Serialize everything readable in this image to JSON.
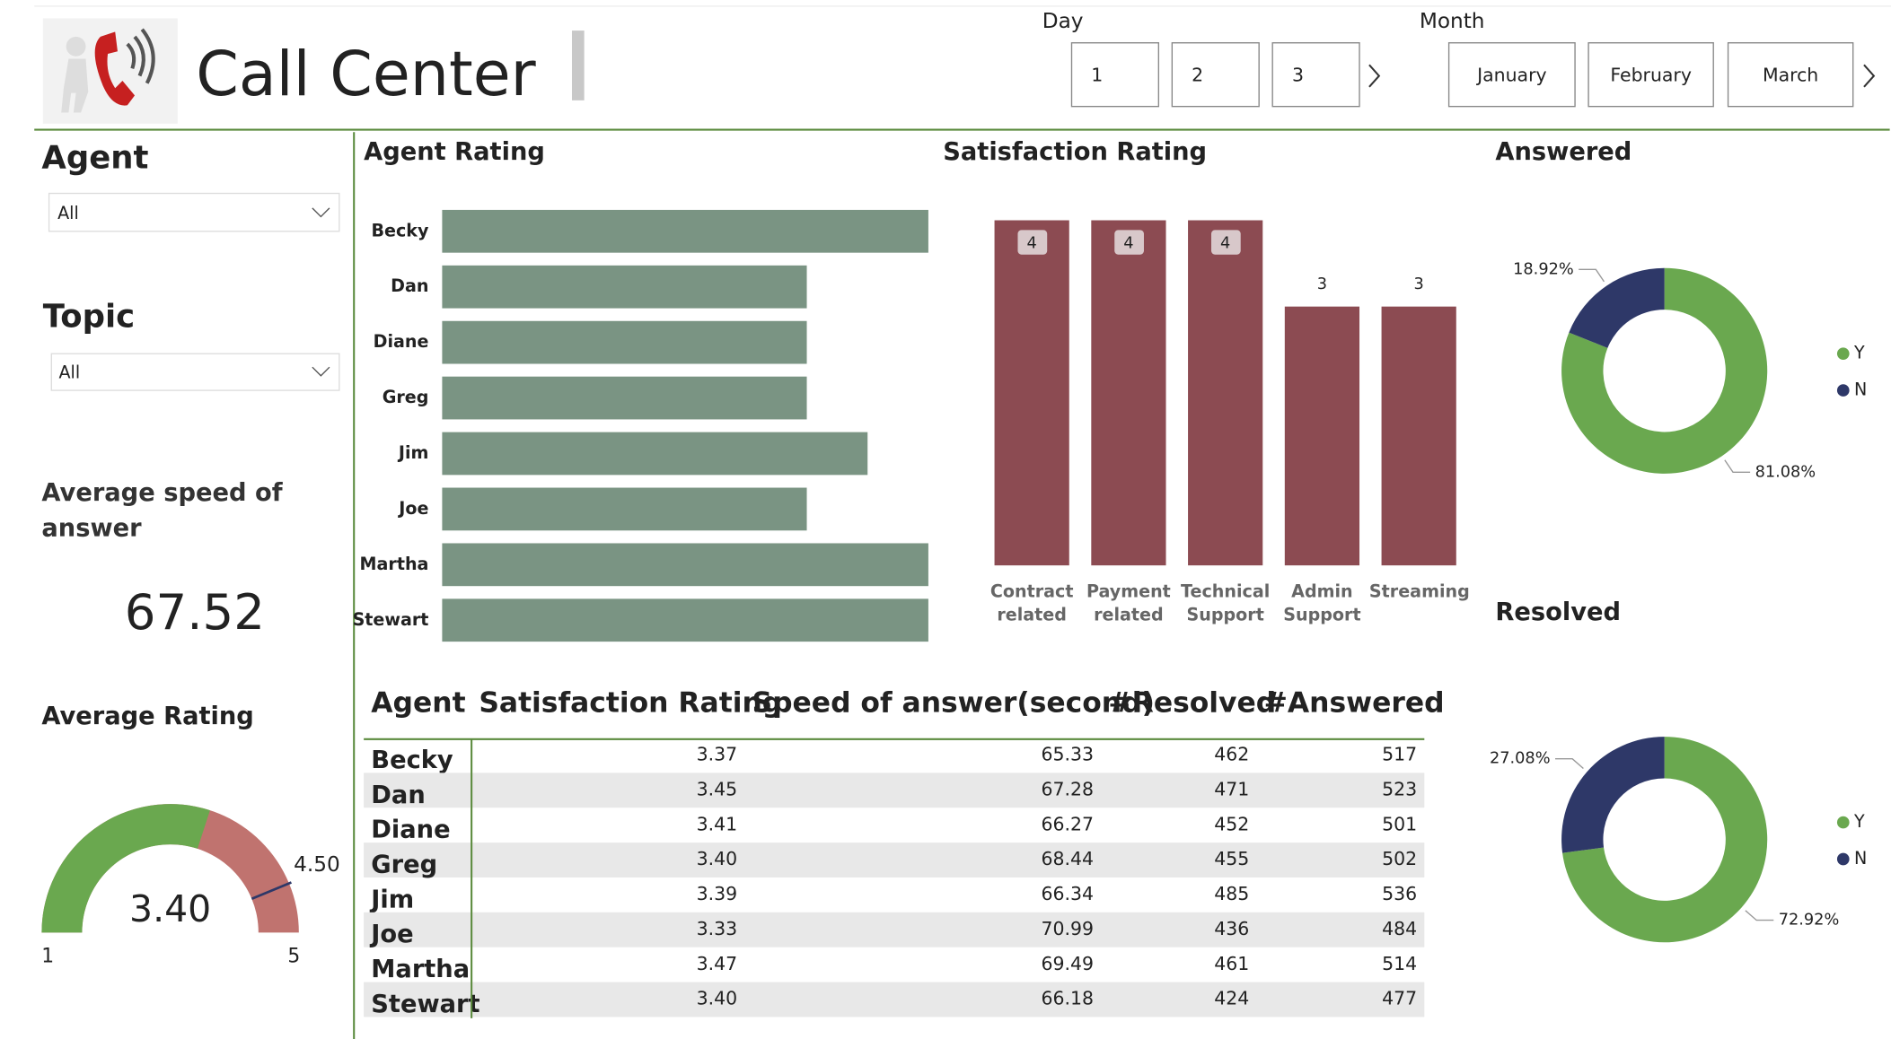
{
  "header": {
    "title": "Call Center",
    "day_label": "Day",
    "days": [
      "1",
      "2",
      "3"
    ],
    "month_label": "Month",
    "months": [
      "January",
      "February",
      "March"
    ]
  },
  "filters": {
    "agent_label": "Agent",
    "agent_value": "All",
    "topic_label": "Topic",
    "topic_value": "All"
  },
  "kpi": {
    "label": "Average speed of answer",
    "value": 67.52
  },
  "chart_data": [
    {
      "type": "hbar",
      "title": "Agent Rating",
      "categories": [
        "Becky",
        "Dan",
        "Diane",
        "Greg",
        "Jim",
        "Joe",
        "Martha",
        "Stewart"
      ],
      "values": [
        4,
        3,
        3,
        3,
        3.5,
        3,
        4,
        4
      ],
      "xlim": [
        0,
        4
      ],
      "color": "#7a9483"
    },
    {
      "type": "bar",
      "title": "Satisfaction Rating",
      "categories": [
        "Contract related",
        "Payment related",
        "Technical Support",
        "Admin Support",
        "Streaming"
      ],
      "values": [
        4,
        4,
        4,
        3,
        3
      ],
      "ylim": [
        0,
        4
      ],
      "color": "#8c4b52"
    },
    {
      "type": "donut",
      "title": "Answered",
      "categories": [
        "Y",
        "N"
      ],
      "values": [
        81.08,
        18.92
      ],
      "value_labels": [
        "81.08%",
        "18.92%"
      ],
      "colors": [
        "#6aa84f",
        "#2e3868"
      ]
    },
    {
      "type": "donut",
      "title": "Resolved",
      "categories": [
        "Y",
        "N"
      ],
      "values": [
        72.92,
        27.08
      ],
      "value_labels": [
        "72.92%",
        "27.08%"
      ],
      "colors": [
        "#6aa84f",
        "#2e3868"
      ]
    },
    {
      "type": "gauge",
      "title": "Average Rating",
      "value": {
        "value": 3.4,
        "label": "3.40"
      },
      "min": 1,
      "max": 5,
      "target": {
        "value": 4.5,
        "label": "4.50"
      },
      "colors": [
        "#6aa84f",
        "#c0736f",
        "#2e3868"
      ]
    }
  ],
  "table": {
    "columns": [
      "Agent",
      "Satisfaction Rating",
      "Speed of answer(second)",
      "#Resolved",
      "#Answered"
    ],
    "rows": [
      [
        "Becky",
        "3.37",
        "65.33",
        "462",
        "517"
      ],
      [
        "Dan",
        "3.45",
        "67.28",
        "471",
        "523"
      ],
      [
        "Diane",
        "3.41",
        "66.27",
        "452",
        "501"
      ],
      [
        "Greg",
        "3.40",
        "68.44",
        "455",
        "502"
      ],
      [
        "Jim",
        "3.39",
        "66.34",
        "485",
        "536"
      ],
      [
        "Joe",
        "3.33",
        "70.99",
        "436",
        "484"
      ],
      [
        "Martha",
        "3.47",
        "69.49",
        "461",
        "514"
      ],
      [
        "Stewart",
        "3.40",
        "66.18",
        "424",
        "477"
      ]
    ]
  }
}
